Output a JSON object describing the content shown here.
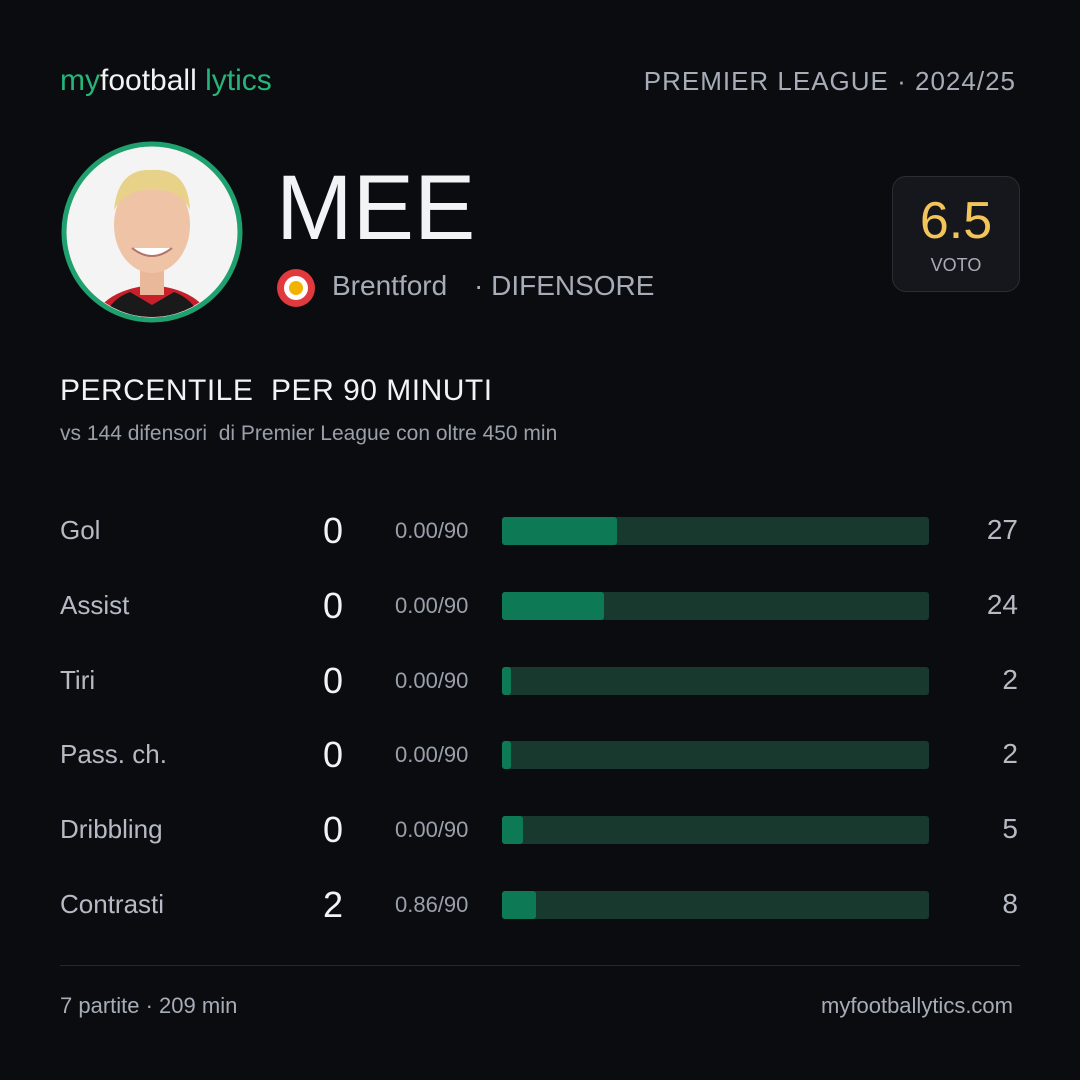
{
  "header": {
    "brand": [
      "my",
      "football",
      "lytics"
    ],
    "league": "PREMIER LEAGUE · 2024/25"
  },
  "player": {
    "name": "MEE",
    "club": "Brentford",
    "position": "· DIFENSORE",
    "rating": "6.5",
    "rating_label": "VOTO"
  },
  "section": {
    "title": "PERCENTILE  PER 90 MINUTI",
    "subtitle": "vs 144 difensori  di Premier League con oltre 450 min"
  },
  "percentile_range": [
    0,
    100
  ],
  "rows": [
    {
      "label": "Gol",
      "value": 0,
      "per90": "0.00/90",
      "percentile": 27
    },
    {
      "label": "Assist",
      "value": 0,
      "per90": "0.00/90",
      "percentile": 24
    },
    {
      "label": "Tiri",
      "value": 0,
      "per90": "0.00/90",
      "percentile": 2
    },
    {
      "label": "Pass. ch.",
      "value": 0,
      "per90": "0.00/90",
      "percentile": 2
    },
    {
      "label": "Dribbling",
      "value": 0,
      "per90": "0.00/90",
      "percentile": 5
    },
    {
      "label": "Contrasti",
      "value": 2,
      "per90": "0.86/90",
      "percentile": 8
    }
  ],
  "footer": {
    "left": "7 partite · 209 min",
    "right": "myfootballytics.com"
  }
}
